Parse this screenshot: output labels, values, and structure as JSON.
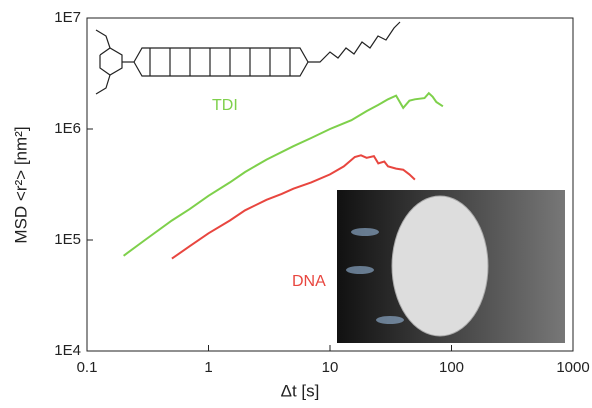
{
  "chart_data": {
    "type": "line",
    "log_x": true,
    "log_y": true,
    "xlabel": "Δt [s]",
    "ylabel": "MSD <r²> [nm²]",
    "xlim": [
      0.1,
      1000
    ],
    "ylim": [
      10000,
      10000000
    ],
    "xticks": [
      0.1,
      1,
      10,
      100,
      1000
    ],
    "yticks": [
      {
        "value": 10000,
        "label": "1E4"
      },
      {
        "value": 100000,
        "label": "1E5"
      },
      {
        "value": 1000000,
        "label": "1E6"
      },
      {
        "value": 10000000,
        "label": "1E7"
      }
    ],
    "series": [
      {
        "name": "TDI",
        "color": "#7ed04b",
        "x": [
          0.2,
          0.3,
          0.5,
          0.7,
          1,
          1.5,
          2,
          3,
          5,
          7,
          10,
          15,
          20,
          25,
          30,
          35,
          40,
          45,
          50,
          60,
          65,
          70,
          75,
          85
        ],
        "values": [
          72000,
          100000,
          150000,
          190000,
          250000,
          330000,
          410000,
          530000,
          700000,
          830000,
          1000000,
          1200000,
          1450000,
          1650000,
          1850000,
          2000000,
          1550000,
          1800000,
          1850000,
          1900000,
          2100000,
          1950000,
          1750000,
          1600000
        ]
      },
      {
        "name": "DNA",
        "color": "#e8463f",
        "x": [
          0.5,
          0.7,
          1,
          1.5,
          2,
          3,
          4,
          5,
          7,
          10,
          13,
          16,
          18,
          20,
          23,
          25,
          28,
          30,
          35,
          40,
          45,
          50
        ],
        "values": [
          68000,
          88000,
          115000,
          150000,
          185000,
          230000,
          260000,
          290000,
          330000,
          390000,
          460000,
          560000,
          580000,
          550000,
          570000,
          490000,
          510000,
          460000,
          440000,
          430000,
          390000,
          350000
        ]
      }
    ]
  }
}
